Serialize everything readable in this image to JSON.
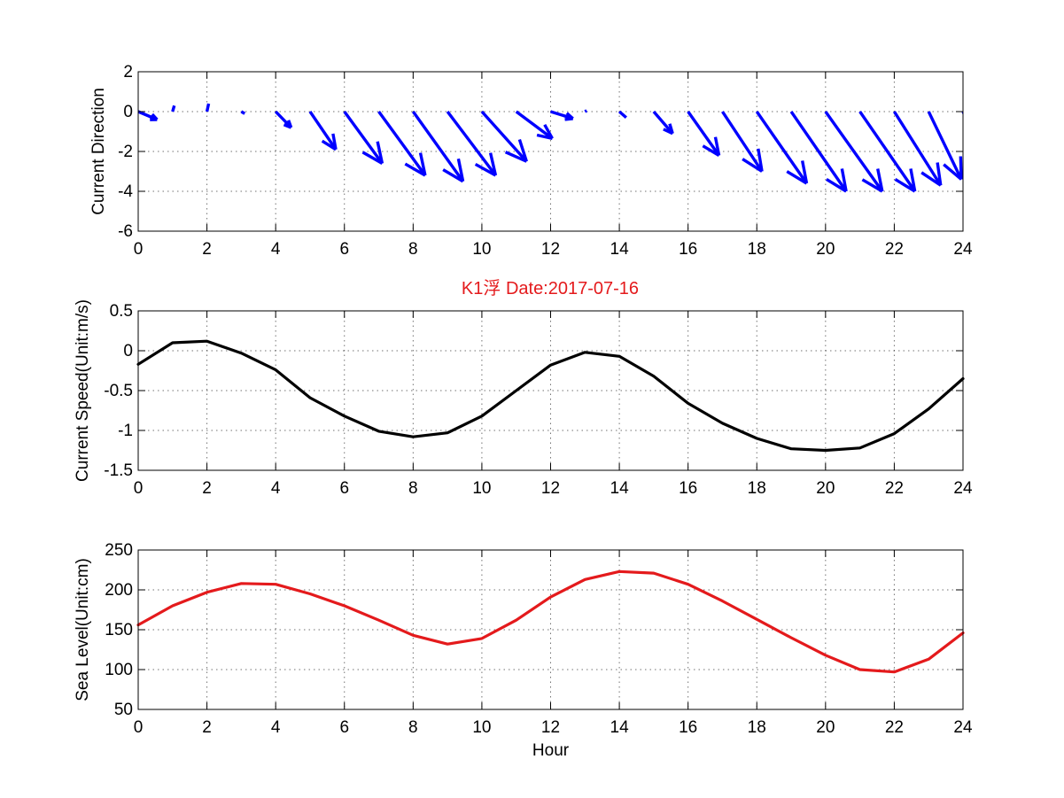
{
  "figure": {
    "title": "K1浮    Date:2017-07-16",
    "title_color": "#e41a1c",
    "background": "#ffffff"
  },
  "chart_data": [
    {
      "type": "quiver",
      "id": "direction",
      "ylabel": "Current Direction",
      "xlabel": "",
      "xlim": [
        0,
        24
      ],
      "ylim": [
        -6,
        2
      ],
      "xticks": [
        0,
        2,
        4,
        6,
        8,
        10,
        12,
        14,
        16,
        18,
        20,
        22,
        24
      ],
      "yticks": [
        -6,
        -4,
        -2,
        0,
        2
      ],
      "grid": true,
      "color": "#0000ff",
      "x": [
        0,
        1,
        2,
        3,
        4,
        5,
        6,
        7,
        8,
        9,
        10,
        11,
        12,
        13,
        14,
        15,
        16,
        17,
        18,
        19,
        20,
        21,
        22,
        23,
        24
      ],
      "u": [
        0.55,
        0.05,
        0.05,
        0.1,
        0.45,
        0.75,
        1.1,
        1.35,
        1.45,
        1.4,
        1.3,
        1.05,
        0.65,
        0.05,
        0.2,
        0.55,
        0.9,
        1.15,
        1.45,
        1.6,
        1.65,
        1.6,
        1.35,
        0.95,
        0.5
      ],
      "v": [
        -0.4,
        0.3,
        0.4,
        -0.1,
        -0.8,
        -1.9,
        -2.6,
        -3.2,
        -3.5,
        -3.2,
        -2.5,
        -1.35,
        -0.35,
        0.05,
        -0.3,
        -1.1,
        -2.2,
        -3.0,
        -3.6,
        -4.0,
        -4.0,
        -4.0,
        -3.7,
        -3.4,
        -1.9
      ]
    },
    {
      "type": "line",
      "id": "speed",
      "ylabel": "Current Speed(Unit:m/s)",
      "xlabel": "",
      "xlim": [
        0,
        24
      ],
      "ylim": [
        -1.5,
        0.5
      ],
      "xticks": [
        0,
        2,
        4,
        6,
        8,
        10,
        12,
        14,
        16,
        18,
        20,
        22,
        24
      ],
      "yticks": [
        -1.5,
        -1,
        -0.5,
        0,
        0.5
      ],
      "ytick_labels": [
        "-1.5",
        "-1",
        "-0.5",
        "0",
        "0.5"
      ],
      "grid": true,
      "color": "#000000",
      "x": [
        0,
        1,
        2,
        3,
        4,
        5,
        6,
        7,
        8,
        9,
        10,
        11,
        12,
        13,
        14,
        15,
        16,
        17,
        18,
        19,
        20,
        21,
        22,
        23,
        24
      ],
      "y": [
        -0.17,
        0.1,
        0.12,
        -0.03,
        -0.24,
        -0.59,
        -0.82,
        -1.01,
        -1.08,
        -1.03,
        -0.82,
        -0.5,
        -0.18,
        -0.02,
        -0.07,
        -0.32,
        -0.66,
        -0.91,
        -1.1,
        -1.23,
        -1.25,
        -1.22,
        -1.04,
        -0.73,
        -0.35
      ]
    },
    {
      "type": "line",
      "id": "sealevel",
      "ylabel": "Sea Level(Unit:cm)",
      "xlabel": "Hour",
      "xlim": [
        0,
        24
      ],
      "ylim": [
        50,
        250
      ],
      "xticks": [
        0,
        2,
        4,
        6,
        8,
        10,
        12,
        14,
        16,
        18,
        20,
        22,
        24
      ],
      "yticks": [
        50,
        100,
        150,
        200,
        250
      ],
      "grid": true,
      "color": "#e41a1c",
      "x": [
        0,
        1,
        2,
        3,
        4,
        5,
        6,
        7,
        8,
        9,
        10,
        11,
        12,
        13,
        14,
        15,
        16,
        17,
        18,
        19,
        20,
        21,
        22,
        23,
        24
      ],
      "y": [
        156,
        180,
        197,
        208,
        207,
        195,
        180,
        162,
        143,
        132,
        139,
        162,
        191,
        213,
        223,
        221,
        207,
        186,
        163,
        140,
        118,
        100,
        97,
        113,
        146
      ]
    }
  ]
}
